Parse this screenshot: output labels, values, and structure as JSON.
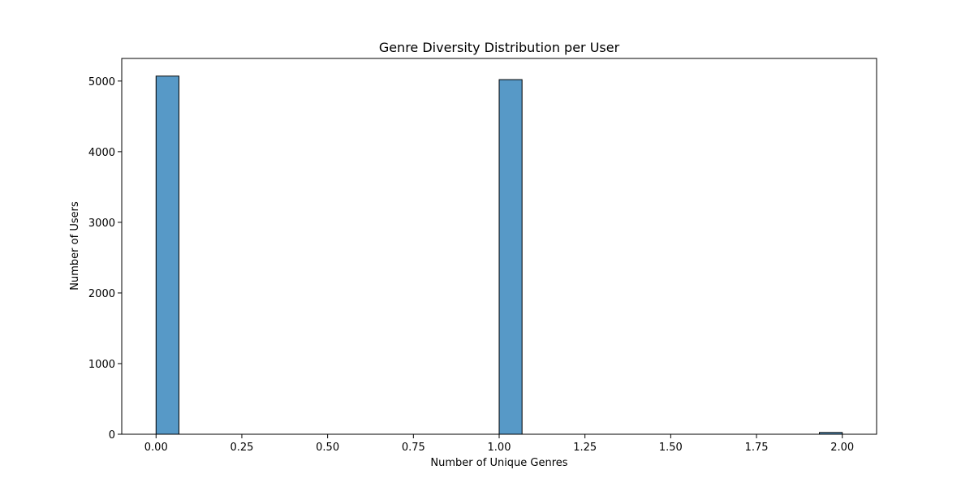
{
  "chart_data": {
    "type": "bar",
    "title": "Genre Diversity Distribution per User",
    "xlabel": "Number of Unique Genres",
    "ylabel": "Number of Users",
    "xlim": [
      -0.1,
      2.1
    ],
    "ylim": [
      0,
      5320
    ],
    "bin_width": 0.06667,
    "bins": [
      {
        "start": 0.0,
        "end": 0.06667,
        "count": 5070
      },
      {
        "start": 1.0,
        "end": 1.06667,
        "count": 5020
      },
      {
        "start": 1.93333,
        "end": 2.0,
        "count": 25
      }
    ],
    "x_ticks": [
      0.0,
      0.25,
      0.5,
      0.75,
      1.0,
      1.25,
      1.5,
      1.75,
      2.0
    ],
    "x_tick_labels": [
      "0.00",
      "0.25",
      "0.50",
      "0.75",
      "1.00",
      "1.25",
      "1.50",
      "1.75",
      "2.00"
    ],
    "y_ticks": [
      0,
      1000,
      2000,
      3000,
      4000,
      5000
    ],
    "y_tick_labels": [
      "0",
      "1000",
      "2000",
      "3000",
      "4000",
      "5000"
    ],
    "grid": false,
    "bar_color": "#5799c7",
    "edge_color": "#000000"
  }
}
